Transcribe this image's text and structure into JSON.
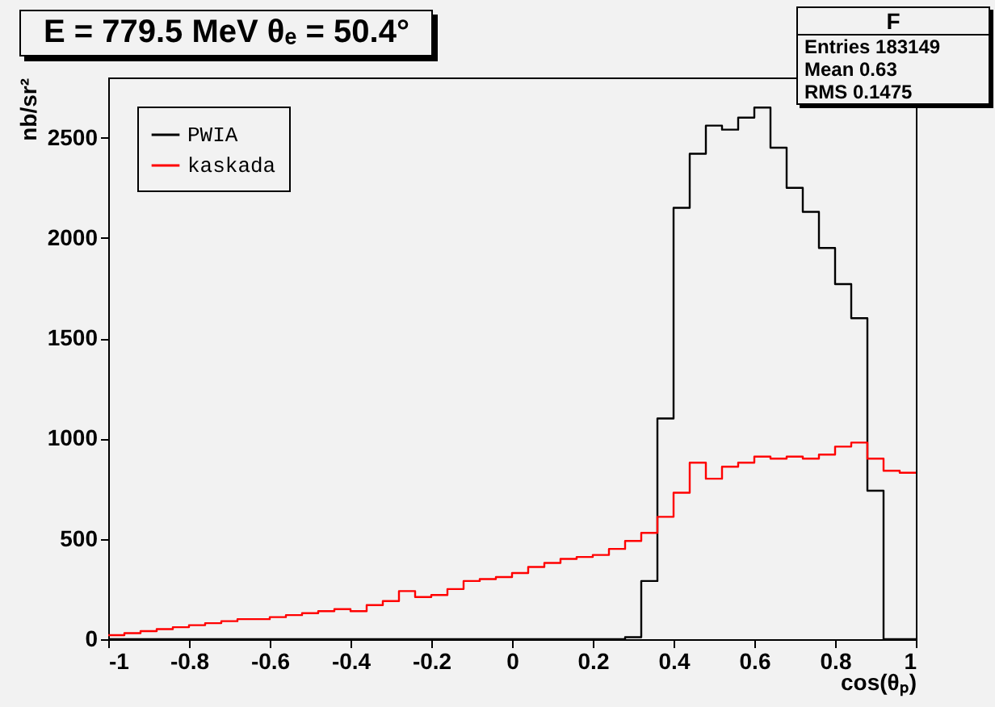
{
  "chart_data": {
    "type": "histogram",
    "title": "E = 779.5 MeV  θₑ = 50.4°",
    "xlabel": "cos(θₚ)",
    "ylabel": "nb/sr²",
    "bins": [
      -1,
      -0.96,
      -0.92,
      -0.88,
      -0.84,
      -0.8,
      -0.76,
      -0.72,
      -0.68,
      -0.64,
      -0.6,
      -0.56,
      -0.52,
      -0.48,
      -0.44,
      -0.4,
      -0.36,
      -0.32,
      -0.28,
      -0.24,
      -0.2,
      -0.16,
      -0.12,
      -0.08,
      -0.04,
      0,
      0.04,
      0.08,
      0.12,
      0.16,
      0.2,
      0.24,
      0.28,
      0.32,
      0.36,
      0.4,
      0.44,
      0.48,
      0.52,
      0.56,
      0.6,
      0.64,
      0.68,
      0.72,
      0.76,
      0.8,
      0.84,
      0.88,
      0.92,
      0.96,
      1
    ],
    "series": [
      {
        "name": "PWIA",
        "color": "#000000",
        "values": [
          0,
          0,
          0,
          0,
          0,
          0,
          0,
          0,
          0,
          0,
          0,
          0,
          0,
          0,
          0,
          0,
          0,
          0,
          0,
          0,
          0,
          0,
          0,
          0,
          0,
          0,
          0,
          0,
          0,
          0,
          0,
          0,
          10,
          290,
          1100,
          2150,
          2420,
          2560,
          2540,
          2600,
          2650,
          2450,
          2250,
          2130,
          1950,
          1770,
          1600,
          740,
          0,
          0
        ]
      },
      {
        "name": "kaskada",
        "color": "#ff0000",
        "values": [
          20,
          30,
          40,
          50,
          60,
          70,
          80,
          90,
          100,
          100,
          110,
          120,
          130,
          140,
          150,
          140,
          170,
          190,
          240,
          210,
          220,
          250,
          290,
          300,
          310,
          330,
          360,
          380,
          400,
          410,
          420,
          450,
          490,
          530,
          610,
          730,
          880,
          800,
          860,
          880,
          910,
          900,
          910,
          900,
          920,
          960,
          980,
          900,
          840,
          830
        ]
      }
    ],
    "xlim": [
      -1,
      1
    ],
    "xticks": [
      -1,
      -0.8,
      -0.6,
      -0.4,
      -0.2,
      0,
      0.2,
      0.4,
      0.6,
      0.8,
      1
    ],
    "ylim": [
      0,
      2800
    ],
    "yticks": [
      0,
      500,
      1000,
      1500,
      2000,
      2500
    ],
    "legend": "top left",
    "grid": false,
    "annotations": [
      "F",
      "Entries 183149",
      "Mean 0.63",
      "RMS 0.1475"
    ]
  }
}
